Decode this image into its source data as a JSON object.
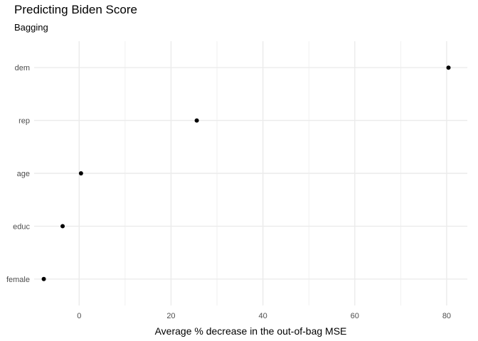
{
  "chart_data": {
    "type": "scatter",
    "title": "Predicting Biden Score",
    "subtitle": "Bagging",
    "xlabel": "Average % decrease in the out-of-bag MSE",
    "ylabel": "",
    "categories": [
      "dem",
      "rep",
      "age",
      "educ",
      "female"
    ],
    "values": [
      80.4,
      25.6,
      0.4,
      -3.6,
      -7.7
    ],
    "x_ticks": [
      0,
      20,
      40,
      60,
      80
    ],
    "xlim": [
      -9.8,
      84.5
    ],
    "grid": true,
    "legend": "none",
    "point_color": "#000000",
    "grid_color": "#ebebeb"
  }
}
